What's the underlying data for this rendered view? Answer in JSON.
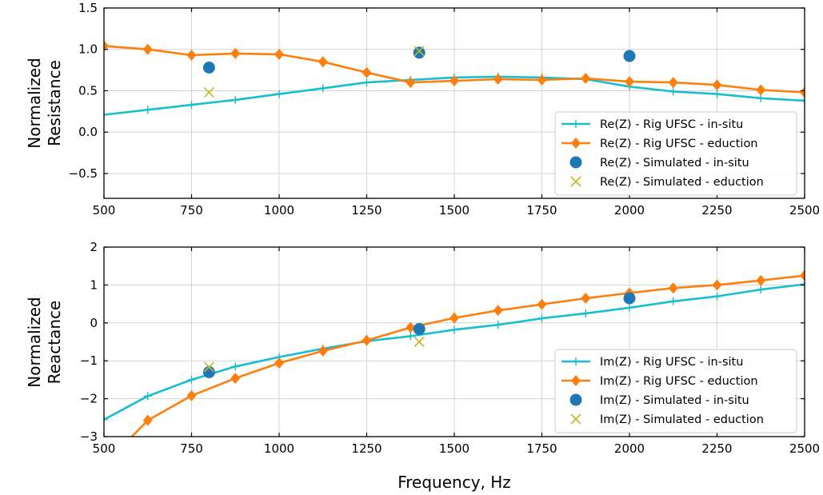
{
  "xlabel": "Frequency, Hz",
  "colors": {
    "in_situ_line": "#17becf",
    "eduction_line": "#ff7f0e",
    "simulated_in_situ": "#1f77b4",
    "simulated_eduction": "#bcbd22",
    "grid": "#d3d3d3"
  },
  "chart_data": [
    {
      "type": "line",
      "ylabel": [
        "Normalized",
        "Resistance"
      ],
      "xlim": [
        500,
        2500
      ],
      "ylim": [
        -0.8,
        1.5
      ],
      "xticks": [
        500,
        750,
        1000,
        1250,
        1500,
        1750,
        2000,
        2250,
        2500
      ],
      "yticks": [
        -0.5,
        0.0,
        0.5,
        1.0,
        1.5
      ],
      "ytick_labels": [
        "−0.5",
        "0.0",
        "0.5",
        "1.0",
        "1.5"
      ],
      "grid": true,
      "legend_position": "lower-right",
      "series": [
        {
          "name": "Re(Z) - Rig UFSC - in-situ",
          "kind": "line-plus",
          "color": "#17becf",
          "x": [
            500,
            625,
            750,
            875,
            1000,
            1125,
            1250,
            1375,
            1500,
            1625,
            1750,
            1875,
            2000,
            2125,
            2250,
            2375,
            2500
          ],
          "y": [
            0.21,
            0.27,
            0.33,
            0.39,
            0.46,
            0.53,
            0.6,
            0.63,
            0.66,
            0.67,
            0.66,
            0.64,
            0.55,
            0.49,
            0.46,
            0.41,
            0.38
          ]
        },
        {
          "name": "Re(Z) - Rig UFSC - eduction",
          "kind": "line-diamond",
          "color": "#ff7f0e",
          "x": [
            500,
            625,
            750,
            875,
            1000,
            1125,
            1250,
            1375,
            1500,
            1625,
            1750,
            1875,
            2000,
            2125,
            2250,
            2375,
            2500
          ],
          "y": [
            1.04,
            1.0,
            0.93,
            0.95,
            0.94,
            0.85,
            0.72,
            0.6,
            0.62,
            0.64,
            0.63,
            0.65,
            0.61,
            0.6,
            0.57,
            0.51,
            0.48
          ]
        },
        {
          "name": "Re(Z) - Simulated - in-situ",
          "kind": "dot",
          "color": "#1f77b4",
          "x": [
            800,
            1400,
            2000
          ],
          "y": [
            0.78,
            0.96,
            0.92
          ]
        },
        {
          "name": "Re(Z) - Simulated - eduction",
          "kind": "cross",
          "color": "#bcbd22",
          "x": [
            800,
            1400
          ],
          "y": [
            0.48,
            0.98
          ]
        }
      ]
    },
    {
      "type": "line",
      "ylabel": [
        "Normalized",
        "Reactance"
      ],
      "xlim": [
        500,
        2500
      ],
      "ylim": [
        -3,
        2
      ],
      "xticks": [
        500,
        750,
        1000,
        1250,
        1500,
        1750,
        2000,
        2250,
        2500
      ],
      "yticks": [
        -3,
        -2,
        -1,
        0,
        1,
        2
      ],
      "ytick_labels": [
        "−3",
        "−2",
        "−1",
        "0",
        "1",
        "2"
      ],
      "grid": true,
      "legend_position": "lower-right",
      "series": [
        {
          "name": "Im(Z) - Rig UFSC - in-situ",
          "kind": "line-plus",
          "color": "#17becf",
          "x": [
            500,
            625,
            750,
            875,
            1000,
            1125,
            1250,
            1375,
            1500,
            1625,
            1750,
            1875,
            2000,
            2125,
            2250,
            2375,
            2500
          ],
          "y": [
            -2.55,
            -1.93,
            -1.5,
            -1.15,
            -0.9,
            -0.68,
            -0.48,
            -0.35,
            -0.18,
            -0.05,
            0.12,
            0.25,
            0.4,
            0.57,
            0.7,
            0.88,
            1.02
          ]
        },
        {
          "name": "Im(Z) - Rig UFSC - eduction",
          "kind": "line-diamond",
          "color": "#ff7f0e",
          "x": [
            500,
            625,
            750,
            875,
            1000,
            1125,
            1250,
            1375,
            1500,
            1625,
            1750,
            1875,
            2000,
            2125,
            2250,
            2375,
            2500
          ],
          "y": [
            -3.75,
            -2.57,
            -1.92,
            -1.46,
            -1.06,
            -0.74,
            -0.46,
            -0.12,
            0.13,
            0.33,
            0.49,
            0.65,
            0.79,
            0.92,
            1.0,
            1.12,
            1.25
          ]
        },
        {
          "name": "Im(Z) - Simulated - in-situ",
          "kind": "dot",
          "color": "#1f77b4",
          "x": [
            800,
            1400,
            2000
          ],
          "y": [
            -1.3,
            -0.16,
            0.65
          ]
        },
        {
          "name": "Im(Z) - Simulated - eduction",
          "kind": "cross",
          "color": "#bcbd22",
          "x": [
            800,
            1400
          ],
          "y": [
            -1.16,
            -0.5
          ]
        }
      ]
    }
  ]
}
